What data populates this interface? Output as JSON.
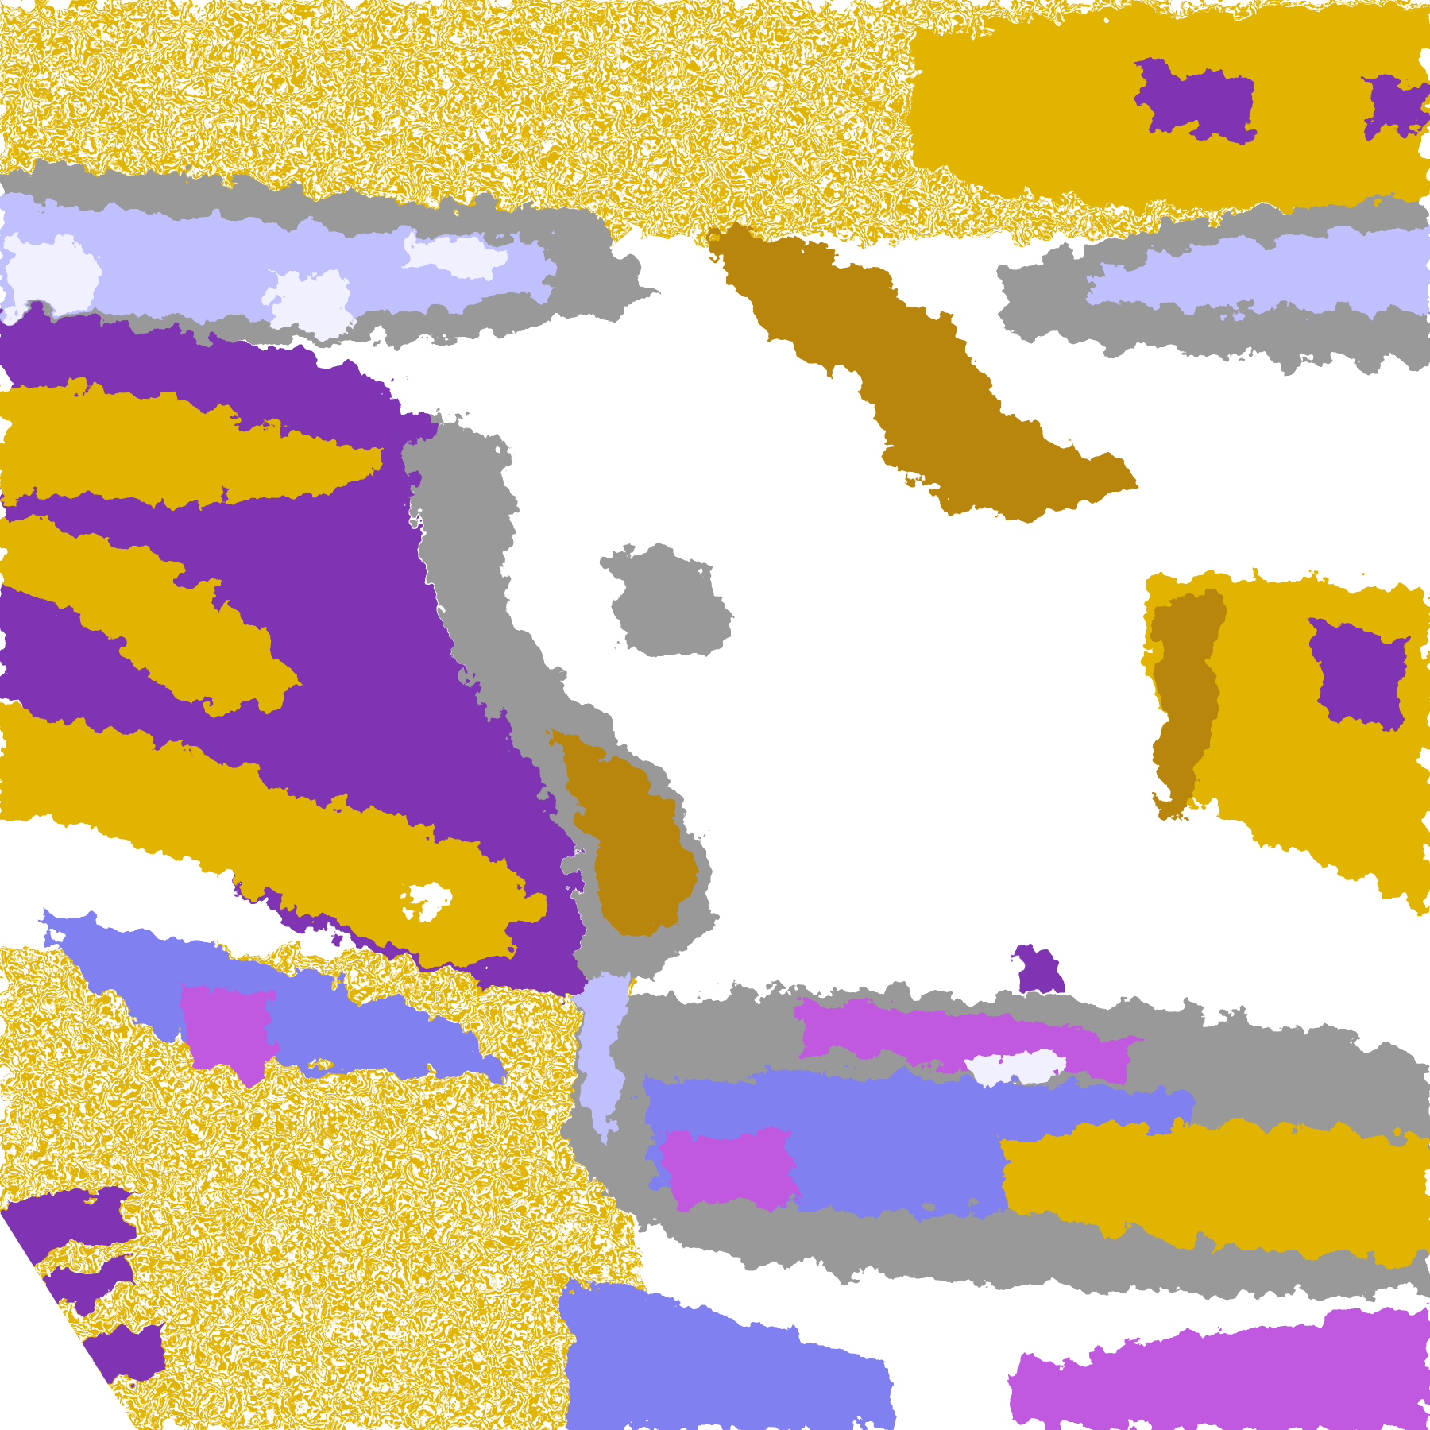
{
  "map": {
    "type": "satellite cloud-classification image",
    "background_color": "#ffffff",
    "palette": {
      "gold": "#e0b400",
      "dark_gold": "#b8860b",
      "purple": "#7f35b3",
      "magenta": "#c058e0",
      "periwinkle": "#8080f0",
      "lavender": "#c0c0ff",
      "pale_lavender": "#f0f0ff",
      "gray": "#999999"
    }
  }
}
